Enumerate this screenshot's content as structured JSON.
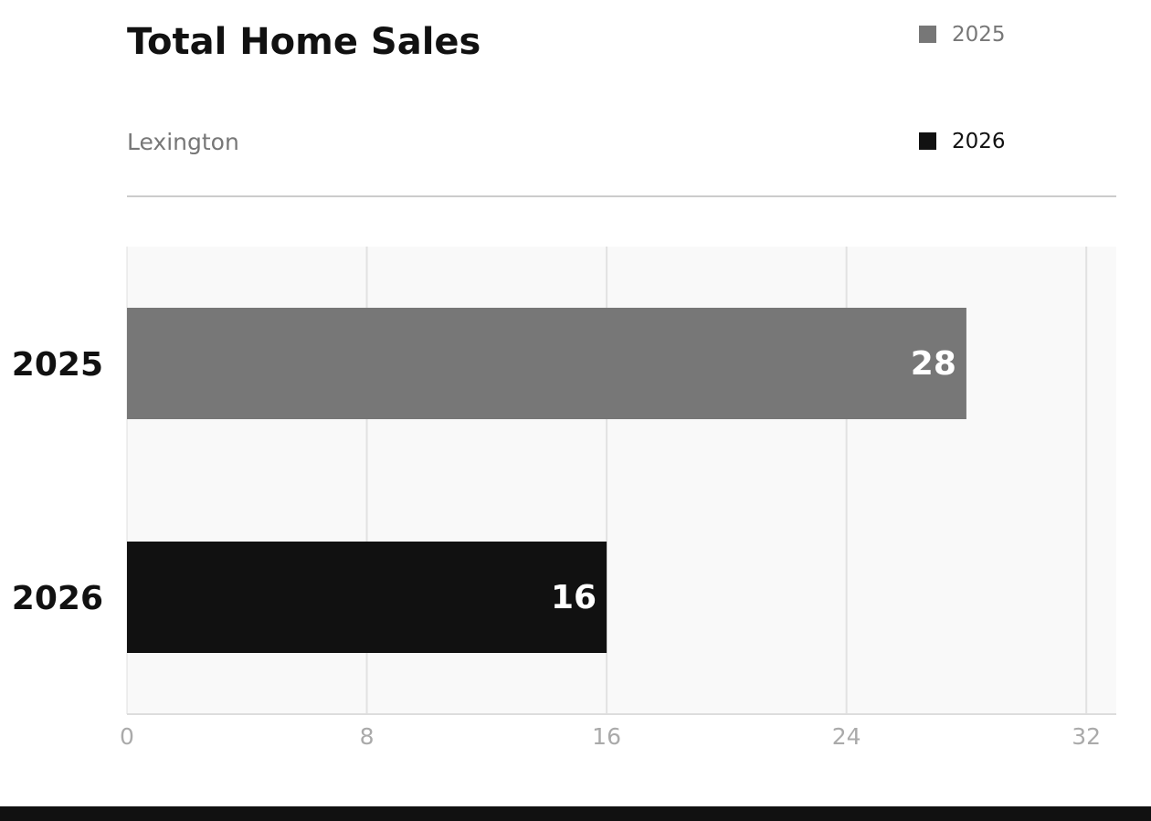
{
  "chart_data": {
    "type": "bar",
    "orientation": "horizontal",
    "title": "Total Home Sales",
    "subtitle": "Lexington",
    "categories": [
      "2025",
      "2026"
    ],
    "values": [
      28,
      16
    ],
    "colors": [
      "#777777",
      "#111111"
    ],
    "xlim": [
      0,
      33
    ],
    "xticks": [
      0,
      8,
      16,
      24,
      32
    ],
    "grid": true,
    "legend_position": "top-right",
    "legend": [
      {
        "label": "2025",
        "color": "#777777"
      },
      {
        "label": "2026",
        "color": "#111111"
      }
    ]
  }
}
